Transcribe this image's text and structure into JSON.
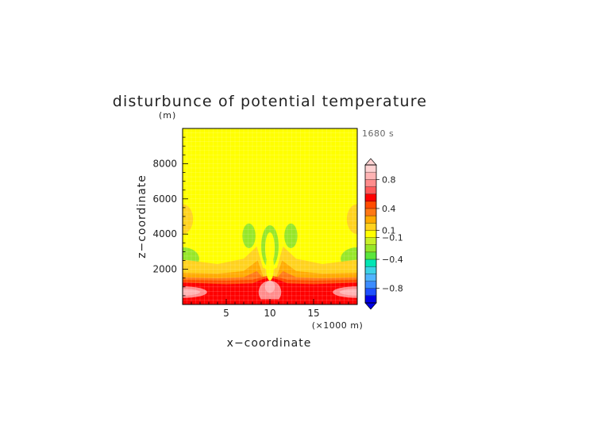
{
  "chart_data": {
    "type": "heatmap",
    "title": "disturbunce of potential temperature",
    "y_unit_label": "(m)",
    "time_label": "1680 s",
    "xlabel": "x−coordinate",
    "ylabel": "z−coordinate",
    "x_unit_label": "(×1000 m)",
    "x_ticks": [
      "5",
      "10",
      "15"
    ],
    "x_tick_values": [
      5,
      10,
      15
    ],
    "y_ticks": [
      "2000",
      "4000",
      "6000",
      "8000"
    ],
    "y_tick_values": [
      2000,
      4000,
      6000,
      8000
    ],
    "xlim": [
      0,
      20
    ],
    "ylim": [
      0,
      10000
    ],
    "grid": true,
    "colorbar": {
      "tick_labels": [
        "0.8",
        "0.4",
        "0.1",
        "−0.1",
        "−0.4",
        "−0.8"
      ],
      "levels": [
        -1.0,
        -0.9,
        -0.8,
        -0.7,
        -0.6,
        -0.5,
        -0.4,
        -0.3,
        -0.2,
        -0.1,
        0.1,
        0.2,
        0.3,
        0.4,
        0.5,
        0.6,
        0.7,
        0.8,
        0.9,
        1.0
      ],
      "colors": [
        "#0000e6",
        "#1e50ff",
        "#3c8cff",
        "#50b4ff",
        "#3cd2e6",
        "#00e6b4",
        "#5ae63c",
        "#96e628",
        "#c8f028",
        "#ffff00",
        "#ffd21e",
        "#ffaa00",
        "#ff7814",
        "#ff4b00",
        "#ff0000",
        "#ff5a5a",
        "#ff8c8c",
        "#ffb4b4",
        "#ffd2d2"
      ],
      "under_color": "#0000e6",
      "over_color": "#ffd2d2"
    },
    "field_regions": [
      {
        "name": "background",
        "value": 0.0,
        "color": "#ffff00"
      },
      {
        "name": "upper-left-lobe",
        "value": 0.12,
        "color": "#ffd21e",
        "cx": 0,
        "cy": 4850,
        "rx": 1.2,
        "ry": 850
      },
      {
        "name": "upper-right-lobe",
        "value": 0.12,
        "color": "#ffd21e",
        "cx": 20,
        "cy": 4850,
        "rx": 1.2,
        "ry": 850
      },
      {
        "name": "left-cool-lobe",
        "value": -0.15,
        "color": "#96e628",
        "cx": 0,
        "cy": 2600,
        "rx": 1.9,
        "ry": 650
      },
      {
        "name": "right-cool-lobe",
        "value": -0.15,
        "color": "#96e628",
        "cx": 20,
        "cy": 2600,
        "rx": 1.9,
        "ry": 650
      },
      {
        "name": "left-plume-cool",
        "value": -0.15,
        "color": "#96e628",
        "cx": 7.6,
        "cy": 3900,
        "rx": 0.75,
        "ry": 700
      },
      {
        "name": "right-plume-cool",
        "value": -0.15,
        "color": "#96e628",
        "cx": 12.4,
        "cy": 3900,
        "rx": 0.75,
        "ry": 700
      },
      {
        "name": "central-ring-cool",
        "value": -0.15,
        "color": "#96e628",
        "cx": 10,
        "cy": 3300,
        "rx": 1.0,
        "ry": 1200
      },
      {
        "name": "central-ring-core",
        "value": 0.0,
        "color": "#ffff00",
        "cx": 10,
        "cy": 3200,
        "rx": 0.55,
        "ry": 900
      },
      {
        "name": "central-column-core",
        "value": 0.0,
        "color": "#ffff00",
        "cx": 10,
        "cy": 2150,
        "rx": 0.45,
        "ry": 800
      }
    ],
    "field_layers": [
      {
        "name": "warm-layer-1",
        "value": 0.15,
        "color": "#ffd21e",
        "top": [
          [
            0,
            2550
          ],
          [
            4,
            2300
          ],
          [
            7,
            2600
          ],
          [
            8.5,
            3300
          ],
          [
            9.2,
            2100
          ],
          [
            10,
            1900
          ],
          [
            10.8,
            2100
          ],
          [
            11.5,
            3300
          ],
          [
            13,
            2600
          ],
          [
            16,
            2300
          ],
          [
            20,
            2550
          ]
        ]
      },
      {
        "name": "warm-layer-2",
        "value": 0.25,
        "color": "#ffaa00",
        "top": [
          [
            0,
            1800
          ],
          [
            4,
            1750
          ],
          [
            7,
            1900
          ],
          [
            8.6,
            2500
          ],
          [
            9.3,
            1500
          ],
          [
            10,
            1400
          ],
          [
            10.7,
            1500
          ],
          [
            11.4,
            2500
          ],
          [
            13,
            1900
          ],
          [
            16,
            1750
          ],
          [
            20,
            1800
          ]
        ]
      },
      {
        "name": "warm-layer-3",
        "value": 0.35,
        "color": "#ff7814",
        "top": [
          [
            0,
            1550
          ],
          [
            4,
            1500
          ],
          [
            7,
            1550
          ],
          [
            8.5,
            1900
          ],
          [
            9.4,
            1400
          ],
          [
            10,
            1300
          ],
          [
            10.6,
            1400
          ],
          [
            11.5,
            1900
          ],
          [
            13,
            1550
          ],
          [
            16,
            1500
          ],
          [
            20,
            1550
          ]
        ]
      },
      {
        "name": "warm-layer-4",
        "value": 0.45,
        "color": "#ff4b00",
        "top": [
          [
            0,
            1400
          ],
          [
            5,
            1350
          ],
          [
            8,
            1400
          ],
          [
            9,
            1550
          ],
          [
            10,
            1650
          ],
          [
            11,
            1550
          ],
          [
            12,
            1400
          ],
          [
            15,
            1350
          ],
          [
            20,
            1400
          ]
        ]
      },
      {
        "name": "hot-layer",
        "value": 0.55,
        "color": "#ff0000",
        "top": [
          [
            0,
            1250
          ],
          [
            5,
            1150
          ],
          [
            8,
            1200
          ],
          [
            9,
            1400
          ],
          [
            10,
            1550
          ],
          [
            11,
            1400
          ],
          [
            12,
            1200
          ],
          [
            15,
            1150
          ],
          [
            20,
            1250
          ]
        ]
      }
    ],
    "hot_spots": [
      {
        "name": "left-band",
        "value": 0.7,
        "color": "#ff8c8c",
        "cx": 0,
        "cy": 700,
        "rx": 2.8,
        "ry": 330
      },
      {
        "name": "right-band",
        "value": 0.7,
        "color": "#ff8c8c",
        "cx": 20,
        "cy": 700,
        "rx": 2.8,
        "ry": 330
      },
      {
        "name": "left-band-core",
        "value": 0.85,
        "color": "#ffb4b4",
        "cx": 0.3,
        "cy": 700,
        "rx": 1.7,
        "ry": 180
      },
      {
        "name": "right-band-core",
        "value": 0.85,
        "color": "#ffb4b4",
        "cx": 19.7,
        "cy": 700,
        "rx": 1.7,
        "ry": 180
      },
      {
        "name": "central-dome",
        "value": 0.7,
        "color": "#ff8c8c",
        "cx": 10,
        "cy": 700,
        "rx": 1.3,
        "ry": 650
      },
      {
        "name": "central-dome-core",
        "value": 0.85,
        "color": "#ffb4b4",
        "cx": 10,
        "cy": 1000,
        "rx": 0.55,
        "ry": 350
      },
      {
        "name": "surface-layer",
        "value": 0.55,
        "color": "#ff0000",
        "cx": 10,
        "cy": 50,
        "rx": 12,
        "ry": 250
      }
    ]
  }
}
